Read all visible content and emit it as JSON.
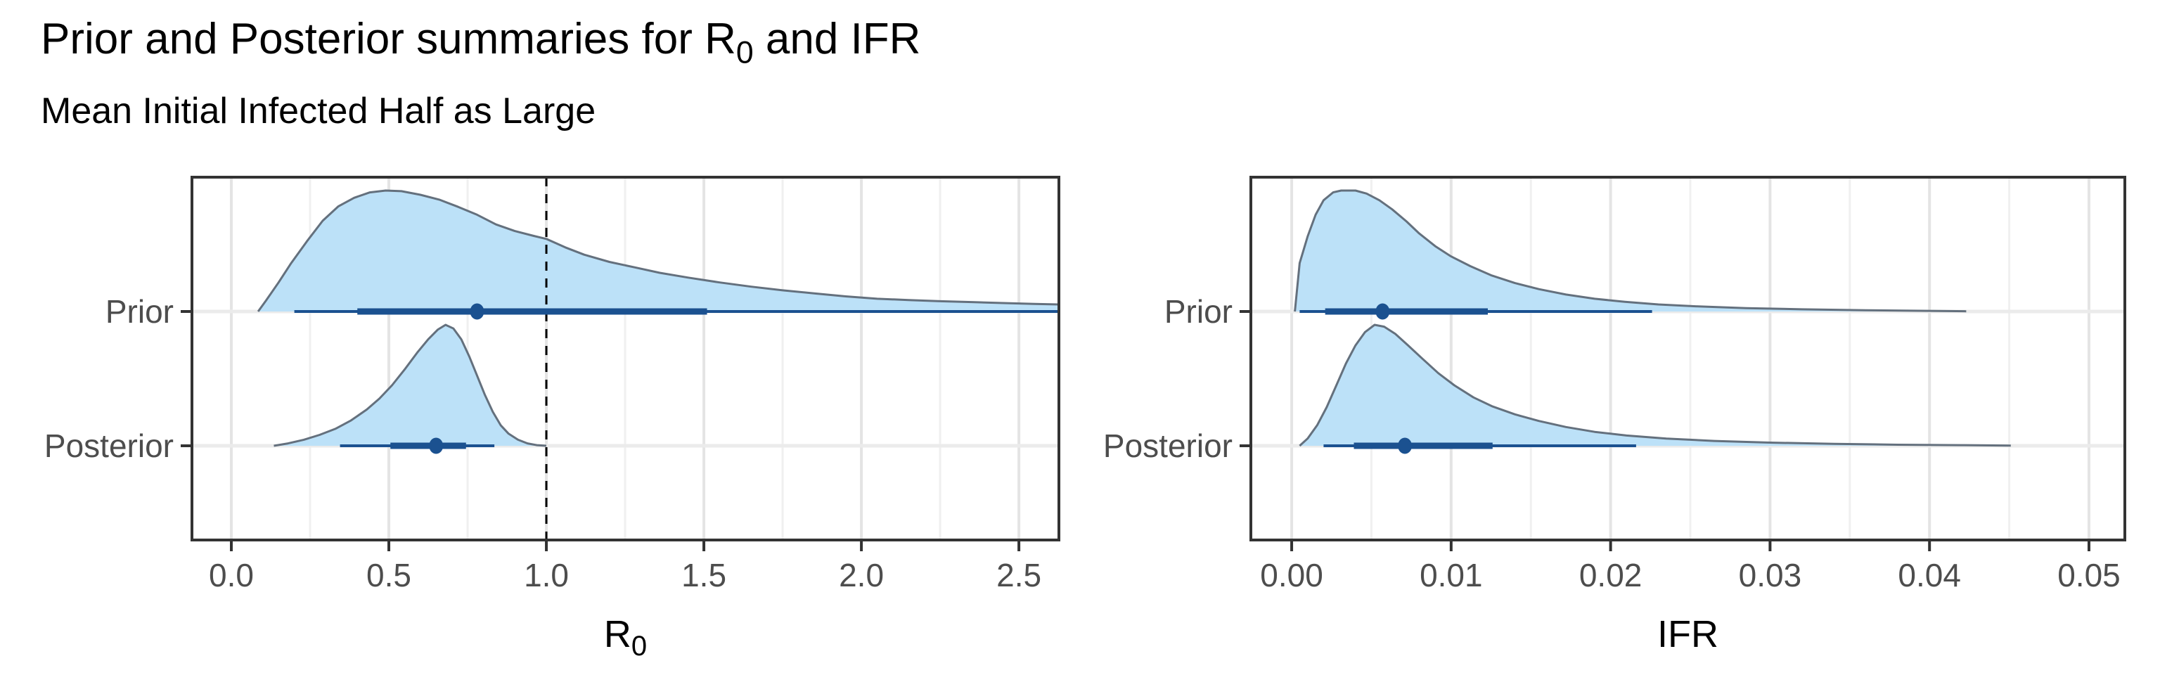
{
  "title": {
    "pre": "Prior and Posterior summaries for R",
    "sub": "0",
    "post": " and IFR"
  },
  "subtitle": "Mean Initial Infected Half as Large",
  "colors": {
    "density_fill": "#bce1f8",
    "density_outline": "#64707d",
    "interval": "#1b5190",
    "reference_line": "#000000",
    "grid_major": "#e4e4e4",
    "grid_minor": "#f0f0f0",
    "grid_row": "#ebebeb",
    "panel_border": "#333333",
    "tick_mark": "#333333",
    "axis_text": "#4d4d4d",
    "axis_title": "#000000"
  },
  "chart_data": [
    {
      "type": "area",
      "panel": "R0",
      "xlabel": {
        "main": "R",
        "sub": "0"
      },
      "x_domain": [
        -0.125,
        2.627
      ],
      "x_ticks": [
        0.0,
        0.5,
        1.0,
        1.5,
        2.0,
        2.5
      ],
      "x_tick_labels": [
        "0.0",
        "0.5",
        "1.0",
        "1.5",
        "2.0",
        "2.5"
      ],
      "x_minor_ticks": [
        0.25,
        0.75,
        1.25,
        1.75,
        2.25
      ],
      "categories": [
        "Prior",
        "Posterior"
      ],
      "reference_line": {
        "x": 1.0,
        "style": "dashed"
      },
      "series": [
        {
          "name": "Prior",
          "density": [
            [
              0.085,
              0.0
            ],
            [
              0.11,
              0.09
            ],
            [
              0.15,
              0.24
            ],
            [
              0.19,
              0.4
            ],
            [
              0.24,
              0.58
            ],
            [
              0.29,
              0.75
            ],
            [
              0.34,
              0.87
            ],
            [
              0.39,
              0.94
            ],
            [
              0.44,
              0.985
            ],
            [
              0.49,
              1.0
            ],
            [
              0.54,
              0.995
            ],
            [
              0.6,
              0.965
            ],
            [
              0.66,
              0.925
            ],
            [
              0.72,
              0.865
            ],
            [
              0.78,
              0.8
            ],
            [
              0.84,
              0.72
            ],
            [
              0.9,
              0.665
            ],
            [
              0.96,
              0.625
            ],
            [
              1.0,
              0.6
            ],
            [
              1.06,
              0.53
            ],
            [
              1.12,
              0.47
            ],
            [
              1.2,
              0.41
            ],
            [
              1.28,
              0.365
            ],
            [
              1.36,
              0.32
            ],
            [
              1.45,
              0.28
            ],
            [
              1.55,
              0.24
            ],
            [
              1.65,
              0.205
            ],
            [
              1.75,
              0.175
            ],
            [
              1.85,
              0.15
            ],
            [
              1.95,
              0.125
            ],
            [
              2.05,
              0.105
            ],
            [
              2.15,
              0.095
            ],
            [
              2.25,
              0.085
            ],
            [
              2.35,
              0.078
            ],
            [
              2.45,
              0.07
            ],
            [
              2.55,
              0.063
            ],
            [
              2.627,
              0.058
            ]
          ],
          "interval": {
            "point": 0.78,
            "inner": [
              0.4,
              1.51
            ],
            "outer": [
              0.2,
              2.627
            ],
            "outer_clipped_right": true
          }
        },
        {
          "name": "Posterior",
          "density": [
            [
              0.135,
              0.0
            ],
            [
              0.18,
              0.02
            ],
            [
              0.23,
              0.05
            ],
            [
              0.28,
              0.09
            ],
            [
              0.33,
              0.14
            ],
            [
              0.38,
              0.21
            ],
            [
              0.43,
              0.3
            ],
            [
              0.47,
              0.39
            ],
            [
              0.51,
              0.5
            ],
            [
              0.55,
              0.63
            ],
            [
              0.59,
              0.77
            ],
            [
              0.625,
              0.88
            ],
            [
              0.655,
              0.96
            ],
            [
              0.68,
              1.0
            ],
            [
              0.705,
              0.97
            ],
            [
              0.73,
              0.88
            ],
            [
              0.755,
              0.74
            ],
            [
              0.78,
              0.58
            ],
            [
              0.805,
              0.42
            ],
            [
              0.83,
              0.28
            ],
            [
              0.855,
              0.17
            ],
            [
              0.88,
              0.1
            ],
            [
              0.91,
              0.05
            ],
            [
              0.94,
              0.02
            ],
            [
              0.97,
              0.005
            ],
            [
              1.0,
              0.0
            ]
          ],
          "interval": {
            "point": 0.65,
            "inner": [
              0.505,
              0.745
            ],
            "outer": [
              0.345,
              0.835
            ]
          }
        }
      ]
    },
    {
      "type": "area",
      "panel": "IFR",
      "xlabel": {
        "main": "IFR",
        "sub": ""
      },
      "x_domain": [
        -0.00256,
        0.05225
      ],
      "x_ticks": [
        0.0,
        0.01,
        0.02,
        0.03,
        0.04,
        0.05
      ],
      "x_tick_labels": [
        "0.00",
        "0.01",
        "0.02",
        "0.03",
        "0.04",
        "0.05"
      ],
      "x_minor_ticks": [
        0.005,
        0.015,
        0.025,
        0.035,
        0.045
      ],
      "categories": [
        "Prior",
        "Posterior"
      ],
      "reference_line": null,
      "series": [
        {
          "name": "Prior",
          "density": [
            [
              0.0002,
              0.0
            ],
            [
              0.0005,
              0.4
            ],
            [
              0.001,
              0.62
            ],
            [
              0.0015,
              0.8
            ],
            [
              0.002,
              0.92
            ],
            [
              0.0026,
              0.985
            ],
            [
              0.0031,
              1.0
            ],
            [
              0.004,
              1.0
            ],
            [
              0.0047,
              0.975
            ],
            [
              0.0055,
              0.92
            ],
            [
              0.0063,
              0.845
            ],
            [
              0.0072,
              0.745
            ],
            [
              0.008,
              0.645
            ],
            [
              0.009,
              0.54
            ],
            [
              0.01,
              0.455
            ],
            [
              0.0112,
              0.375
            ],
            [
              0.0125,
              0.3
            ],
            [
              0.014,
              0.235
            ],
            [
              0.0155,
              0.185
            ],
            [
              0.0172,
              0.14
            ],
            [
              0.019,
              0.105
            ],
            [
              0.0209,
              0.08
            ],
            [
              0.023,
              0.058
            ],
            [
              0.0255,
              0.042
            ],
            [
              0.0285,
              0.028
            ],
            [
              0.032,
              0.018
            ],
            [
              0.036,
              0.01
            ],
            [
              0.04,
              0.005
            ],
            [
              0.0423,
              0.002
            ]
          ],
          "interval": {
            "point": 0.0057,
            "inner": [
              0.0021,
              0.0123
            ],
            "outer": [
              0.0005,
              0.0226
            ]
          }
        },
        {
          "name": "Posterior",
          "density": [
            [
              0.0005,
              0.0
            ],
            [
              0.001,
              0.06
            ],
            [
              0.0016,
              0.17
            ],
            [
              0.0022,
              0.32
            ],
            [
              0.0028,
              0.5
            ],
            [
              0.0034,
              0.68
            ],
            [
              0.004,
              0.83
            ],
            [
              0.0046,
              0.94
            ],
            [
              0.0052,
              1.0
            ],
            [
              0.0058,
              0.985
            ],
            [
              0.0065,
              0.925
            ],
            [
              0.0073,
              0.83
            ],
            [
              0.0082,
              0.72
            ],
            [
              0.0092,
              0.6
            ],
            [
              0.0102,
              0.5
            ],
            [
              0.0114,
              0.4
            ],
            [
              0.0126,
              0.325
            ],
            [
              0.014,
              0.26
            ],
            [
              0.0155,
              0.205
            ],
            [
              0.0172,
              0.155
            ],
            [
              0.019,
              0.115
            ],
            [
              0.021,
              0.085
            ],
            [
              0.0235,
              0.06
            ],
            [
              0.0265,
              0.04
            ],
            [
              0.03,
              0.026
            ],
            [
              0.034,
              0.016
            ],
            [
              0.038,
              0.009
            ],
            [
              0.042,
              0.005
            ],
            [
              0.0451,
              0.002
            ]
          ],
          "interval": {
            "point": 0.0071,
            "inner": [
              0.0039,
              0.0126
            ],
            "outer": [
              0.002,
              0.0216
            ]
          }
        }
      ]
    }
  ]
}
